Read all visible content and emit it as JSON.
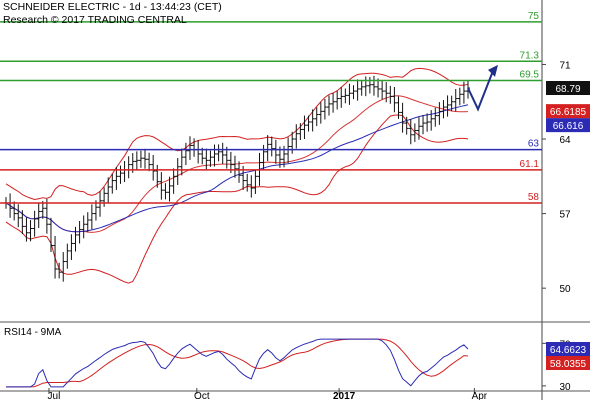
{
  "header": {
    "line1": "SCHNEIDER ELECTRIC - 1d - 13:44:23 (CET)",
    "line2": "Research © 2017 TRADING CENTRAL"
  },
  "rsi_label": "RSI14 - 9MA",
  "chart_data": {
    "type": "line",
    "title": "SCHNEIDER ELECTRIC - 1d - 13:44:23 (CET)",
    "price_panel": {
      "y_ticks": [
        50,
        57,
        64,
        71
      ],
      "ylim": [
        47.2,
        76.3
      ],
      "grid": false,
      "last_price": 68.79,
      "levels": [
        {
          "value": 75,
          "label": "75",
          "color": "#2e9e2e",
          "kind": "resistance"
        },
        {
          "value": 71.3,
          "label": "71.3",
          "color": "#2e9e2e",
          "kind": "resistance"
        },
        {
          "value": 69.5,
          "label": "69.5",
          "color": "#2e9e2e",
          "kind": "resistance"
        },
        {
          "value": 63,
          "label": "63",
          "color": "#2b2bb5",
          "kind": "pivot"
        },
        {
          "value": 61.1,
          "label": "61.1",
          "color": "#d42020",
          "kind": "support"
        },
        {
          "value": 58,
          "label": "58",
          "color": "#d42020",
          "kind": "support"
        }
      ],
      "value_tags": [
        {
          "label": "68.79",
          "value": 68.79,
          "color": "#111111"
        },
        {
          "label": "66.6185",
          "value": 66.6185,
          "color": "#d42020"
        },
        {
          "label": "66.616",
          "value": 66.616,
          "color": "#2b2bb5"
        }
      ],
      "close_series": [
        58,
        57.5,
        57,
        56.6,
        55.8,
        55.2,
        55.6,
        56.5,
        57.2,
        57.5,
        56,
        54,
        51.8,
        51.5,
        52.5,
        53.5,
        54.2,
        55,
        55.5,
        56,
        56.4,
        57,
        57.6,
        58.2,
        58.9,
        59.5,
        60.1,
        60.5,
        60.8,
        61.1,
        61.6,
        61.9,
        62,
        62.2,
        62.1,
        61.6,
        61,
        60,
        59.2,
        59,
        59.6,
        60.5,
        61.4,
        62.3,
        62.9,
        63.4,
        63,
        62.6,
        62.2,
        62,
        62.3,
        62.6,
        62.8,
        62.5,
        62,
        61.6,
        61.2,
        60.6,
        60.1,
        59.7,
        59.4,
        60.5,
        61.8,
        62.8,
        63.5,
        63.1,
        62.5,
        62.1,
        62.6,
        63.3,
        64,
        64.5,
        64.9,
        65.3,
        65.6,
        65.9,
        66.3,
        66.6,
        67,
        67.3,
        67.5,
        67.8,
        68,
        68.1,
        68.3,
        68.5,
        68.7,
        68.9,
        69,
        69.1,
        68.9,
        68.7,
        68.5,
        68.3,
        68,
        67.4,
        66.5,
        65.5,
        65,
        64.4,
        64.8,
        65.2,
        65.5,
        65.6,
        65.9,
        66.2,
        66.6,
        67,
        67.2,
        67.5,
        67.8,
        68.2,
        68.5,
        68.79
      ],
      "projection": [
        68.79,
        66.8,
        70.4
      ]
    },
    "rsi_panel": {
      "name": "RSI14 - 9MA",
      "y_ticks": [
        30,
        70
      ],
      "ylim": [
        28,
        75
      ],
      "last_rsi": 64.6623,
      "last_ma": 58.0355,
      "value_tags": [
        {
          "label": "64.6623",
          "value": 64.6623,
          "color": "#2b2bb5"
        },
        {
          "label": "58.0355",
          "value": 58.0355,
          "color": "#d42020"
        }
      ]
    },
    "x_labels": [
      {
        "label": "Jul",
        "pos": 0.111
      },
      {
        "label": "Oct",
        "pos": 0.427
      },
      {
        "label": "2017",
        "pos": 0.731,
        "bold": true
      },
      {
        "label": "Apr",
        "pos": 1.02
      }
    ],
    "colors": {
      "price": "#111111",
      "bollinger": "#d42020",
      "ma": "#2b2bb5",
      "projection": "#1f2f8a"
    }
  }
}
